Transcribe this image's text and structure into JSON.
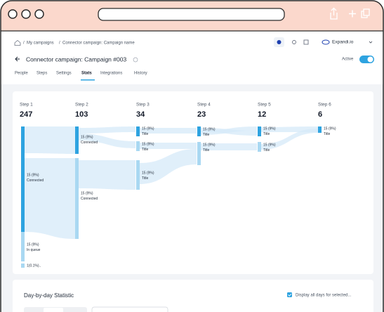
{
  "breadcrumb": [
    "My campaigns",
    "Connector campaign: Campaign name"
  ],
  "header": {
    "title": "Connector campaign: Campaign #003",
    "status": "Active",
    "account": "Expandi.io"
  },
  "tabs": [
    "People",
    "Steps",
    "Settings",
    "Stats",
    "Integrations",
    "History"
  ],
  "steps": [
    {
      "label": "Step 1",
      "count": 247,
      "nodes": [
        {
          "value": "15 (9%)",
          "label": "Connected"
        },
        {
          "value": "15 (9%)",
          "label": "In queue"
        },
        {
          "value": "1(0.1%).."
        }
      ]
    },
    {
      "label": "Step 2",
      "count": 103,
      "nodes": [
        {
          "value": "15 (9%)",
          "label": "Connected"
        },
        {
          "value": "15 (9%)",
          "label": "Connected"
        }
      ]
    },
    {
      "label": "Step 3",
      "count": 34,
      "nodes": [
        {
          "value": "15 (9%)",
          "label": "Title"
        },
        {
          "value": "15 (9%)",
          "label": "Title"
        },
        {
          "value": "15 (9%)",
          "label": "Title"
        }
      ]
    },
    {
      "label": "Step 4",
      "count": 23,
      "nodes": [
        {
          "value": "15 (9%)",
          "label": "Title"
        },
        {
          "value": "15 (9%)",
          "label": "Title"
        }
      ]
    },
    {
      "label": "Step 5",
      "count": 12,
      "nodes": [
        {
          "value": "15 (9%)",
          "label": "Title"
        },
        {
          "value": "15 (9%)",
          "label": "Title"
        }
      ]
    },
    {
      "label": "Step 6",
      "count": 6,
      "nodes": [
        {
          "value": "15 (9%)",
          "label": "Title"
        }
      ]
    }
  ],
  "day_stats": {
    "title": "Day-by-day Statistic",
    "checkbox": "Display all days for selected..."
  }
}
